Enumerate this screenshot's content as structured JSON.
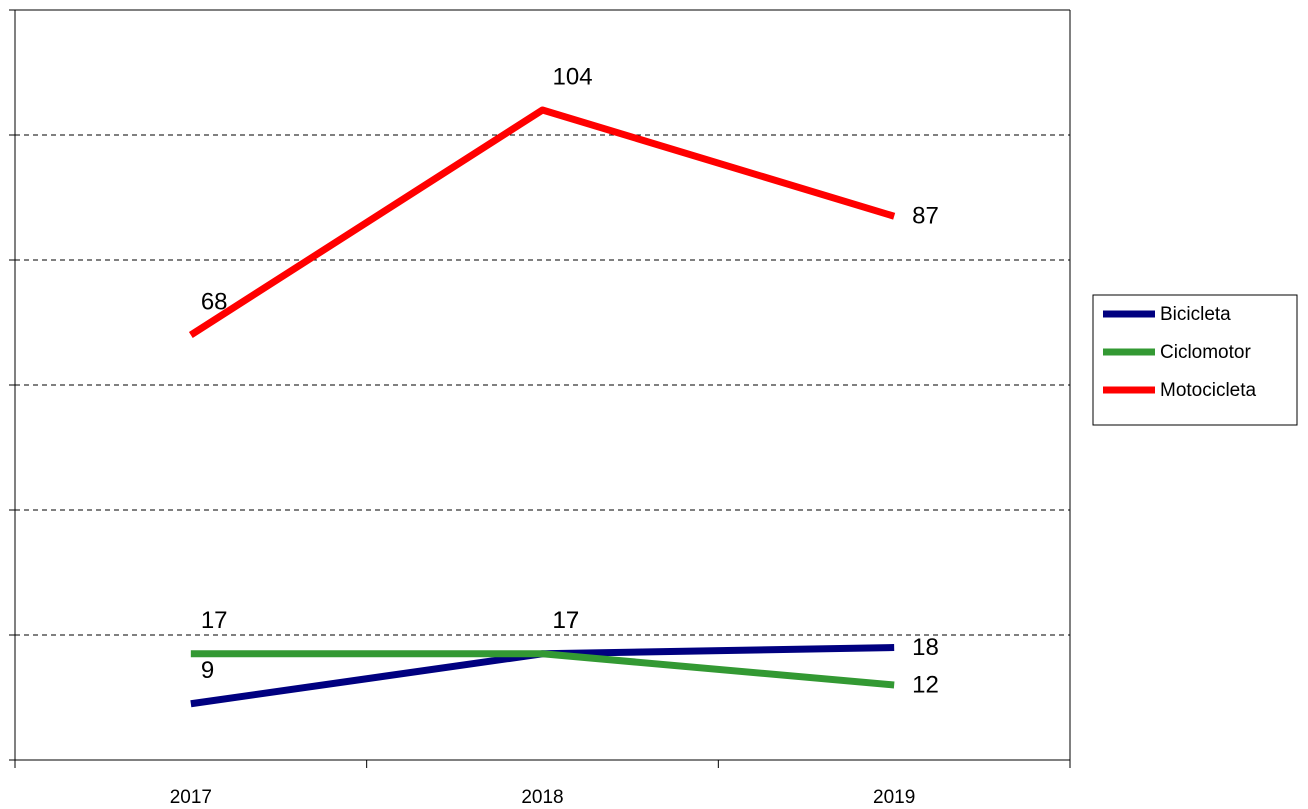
{
  "chart_data": {
    "type": "line",
    "categories": [
      "2017",
      "2018",
      "2019"
    ],
    "series": [
      {
        "name": "Bicicleta",
        "color": "#000080",
        "values": [
          9,
          17,
          18
        ]
      },
      {
        "name": "Ciclomotor",
        "color": "#339933",
        "values": [
          17,
          17,
          12
        ]
      },
      {
        "name": "Motocicleta",
        "color": "#ff0000",
        "values": [
          68,
          104,
          87
        ]
      }
    ],
    "ylim": [
      0,
      120
    ],
    "yticks": [
      0,
      20,
      40,
      60,
      80,
      100,
      120
    ],
    "grid": true,
    "legend": "right"
  }
}
